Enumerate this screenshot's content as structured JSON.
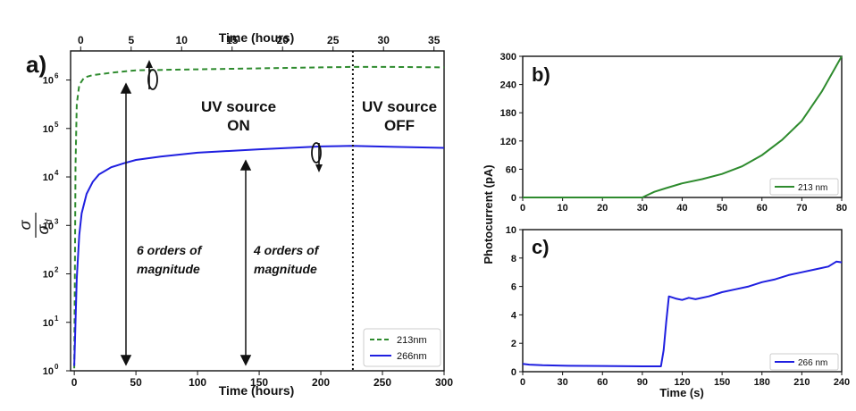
{
  "chart_data": [
    {
      "panel": "a)",
      "type": "line",
      "xlabel": "Time (hours)",
      "xlabel_top": "Time (hours)",
      "ylabel": "σ/σd",
      "xlim": [
        -3,
        300
      ],
      "xlim_top": [
        -1,
        36
      ],
      "ylim_log10": [
        0,
        6.6
      ],
      "yscale": "log",
      "x_ticks": [
        "0",
        "50",
        "100",
        "150",
        "200",
        "250",
        "300"
      ],
      "x_ticks_top": [
        "0",
        "5",
        "10",
        "15",
        "20",
        "25",
        "30",
        "35"
      ],
      "y_ticks": [
        "10",
        "10",
        "10",
        "10",
        "10",
        "10",
        "10"
      ],
      "y_tick_exps": [
        "0",
        "1",
        "2",
        "3",
        "4",
        "5",
        "6"
      ],
      "legend": "lower-right",
      "series": [
        {
          "name": "213nm",
          "color": "#2e8b2e",
          "dash": true,
          "x": [
            0,
            0.5,
            1,
            2,
            4,
            8,
            15,
            30,
            50,
            100,
            150,
            200,
            225,
            260,
            300
          ],
          "y_log10": [
            0.05,
            2.0,
            4.2,
            5.5,
            5.9,
            6.05,
            6.1,
            6.15,
            6.2,
            6.22,
            6.24,
            6.26,
            6.27,
            6.27,
            6.26
          ]
        },
        {
          "name": "266nm",
          "color": "#1f1fe0",
          "dash": false,
          "x": [
            0,
            1,
            2,
            4,
            6,
            10,
            15,
            20,
            30,
            40,
            50,
            70,
            100,
            150,
            200,
            225,
            260,
            300
          ],
          "y_log10": [
            0.1,
            1.0,
            1.9,
            2.8,
            3.25,
            3.65,
            3.9,
            4.05,
            4.2,
            4.28,
            4.35,
            4.42,
            4.5,
            4.57,
            4.63,
            4.64,
            4.62,
            4.6
          ]
        }
      ],
      "vline_x": 226,
      "annotations": {
        "uv_on": [
          "UV source",
          "ON"
        ],
        "uv_off": [
          "UV source",
          "OFF"
        ],
        "six_orders": [
          "6 orders of",
          "magnitude"
        ],
        "four_orders": [
          "4 orders of",
          "magnitude"
        ]
      }
    },
    {
      "panel": "b)",
      "type": "line",
      "xlim": [
        0,
        80
      ],
      "ylim": [
        0,
        300
      ],
      "x_ticks": [
        "0",
        "10",
        "20",
        "30",
        "40",
        "50",
        "60",
        "70",
        "80"
      ],
      "y_ticks": [
        "0",
        "60",
        "120",
        "180",
        "240",
        "300"
      ],
      "legend": "lower-right",
      "series": [
        {
          "name": "213 nm",
          "color": "#2e8b2e",
          "x": [
            0,
            30,
            31,
            33,
            36,
            40,
            45,
            50,
            55,
            60,
            65,
            70,
            75,
            80
          ],
          "y": [
            0,
            0,
            4,
            12,
            20,
            30,
            39,
            50,
            66,
            90,
            122,
            163,
            225,
            300
          ]
        }
      ]
    },
    {
      "panel": "c)",
      "type": "line",
      "xlabel": "Time (s)",
      "ylabel": "Photocurrent (pA)",
      "xlim": [
        0,
        240
      ],
      "ylim": [
        0,
        10
      ],
      "x_ticks": [
        "0",
        "30",
        "60",
        "90",
        "120",
        "150",
        "180",
        "210",
        "240"
      ],
      "y_ticks": [
        "0",
        "2",
        "4",
        "6",
        "8",
        "10"
      ],
      "legend": "lower-right",
      "series": [
        {
          "name": "266 nm",
          "color": "#1f1fe0",
          "x": [
            0,
            5,
            15,
            30,
            60,
            90,
            104,
            106,
            108,
            110,
            115,
            120,
            125,
            130,
            140,
            150,
            160,
            170,
            180,
            190,
            200,
            210,
            220,
            230,
            236,
            240
          ],
          "y": [
            0.55,
            0.5,
            0.45,
            0.42,
            0.4,
            0.38,
            0.38,
            1.5,
            3.5,
            5.3,
            5.15,
            5.05,
            5.2,
            5.1,
            5.3,
            5.6,
            5.8,
            6.0,
            6.3,
            6.5,
            6.8,
            7.0,
            7.2,
            7.4,
            7.75,
            7.7
          ]
        }
      ]
    }
  ]
}
